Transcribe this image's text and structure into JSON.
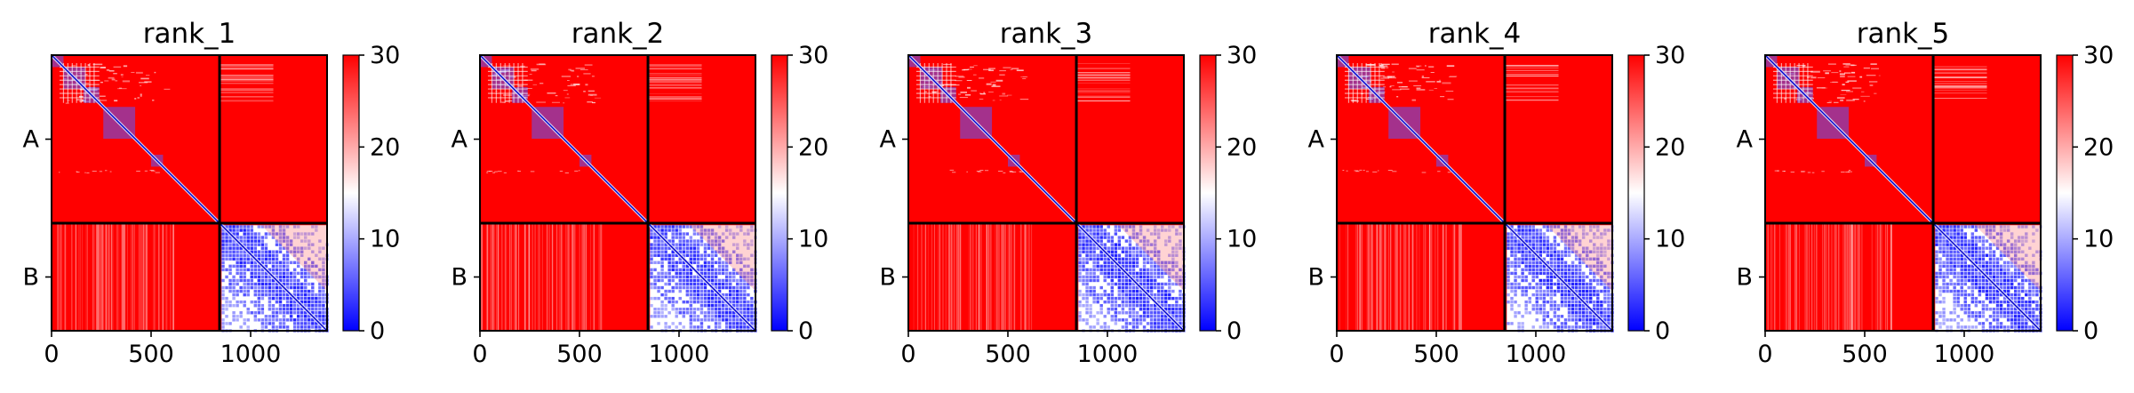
{
  "figure": {
    "panel_titles": [
      "rank_1",
      "rank_2",
      "rank_3",
      "rank_4",
      "rank_5"
    ]
  },
  "chart_data": [
    {
      "type": "heatmap",
      "title": "rank_1",
      "xlabel": "",
      "ylabel": "",
      "x_ticks": [
        0,
        500,
        1000
      ],
      "xlim": [
        0,
        1384
      ],
      "ylim": [
        1384,
        0
      ],
      "y_chain_labels": [
        "A",
        "B"
      ],
      "chains": [
        {
          "name": "A",
          "start": 0,
          "end": 844
        },
        {
          "name": "B",
          "start": 844,
          "end": 1384
        }
      ],
      "chain_boundary": 844,
      "value_range": [
        0,
        30
      ],
      "colorbar_ticks": [
        0,
        10,
        20,
        30
      ],
      "colormap": [
        "#0000ff",
        "#ffffff",
        "#ff0000"
      ],
      "grid": false
    },
    {
      "type": "heatmap",
      "title": "rank_2",
      "xlabel": "",
      "ylabel": "",
      "x_ticks": [
        0,
        500,
        1000
      ],
      "xlim": [
        0,
        1384
      ],
      "ylim": [
        1384,
        0
      ],
      "y_chain_labels": [
        "A",
        "B"
      ],
      "chains": [
        {
          "name": "A",
          "start": 0,
          "end": 844
        },
        {
          "name": "B",
          "start": 844,
          "end": 1384
        }
      ],
      "chain_boundary": 844,
      "value_range": [
        0,
        30
      ],
      "colorbar_ticks": [
        0,
        10,
        20,
        30
      ],
      "colormap": [
        "#0000ff",
        "#ffffff",
        "#ff0000"
      ],
      "grid": false
    },
    {
      "type": "heatmap",
      "title": "rank_3",
      "xlabel": "",
      "ylabel": "",
      "x_ticks": [
        0,
        500,
        1000
      ],
      "xlim": [
        0,
        1384
      ],
      "ylim": [
        1384,
        0
      ],
      "y_chain_labels": [
        "A",
        "B"
      ],
      "chains": [
        {
          "name": "A",
          "start": 0,
          "end": 844
        },
        {
          "name": "B",
          "start": 844,
          "end": 1384
        }
      ],
      "chain_boundary": 844,
      "value_range": [
        0,
        30
      ],
      "colorbar_ticks": [
        0,
        10,
        20,
        30
      ],
      "colormap": [
        "#0000ff",
        "#ffffff",
        "#ff0000"
      ],
      "grid": false
    },
    {
      "type": "heatmap",
      "title": "rank_4",
      "xlabel": "",
      "ylabel": "",
      "x_ticks": [
        0,
        500,
        1000
      ],
      "xlim": [
        0,
        1384
      ],
      "ylim": [
        1384,
        0
      ],
      "y_chain_labels": [
        "A",
        "B"
      ],
      "chains": [
        {
          "name": "A",
          "start": 0,
          "end": 844
        },
        {
          "name": "B",
          "start": 844,
          "end": 1384
        }
      ],
      "chain_boundary": 844,
      "value_range": [
        0,
        30
      ],
      "colorbar_ticks": [
        0,
        10,
        20,
        30
      ],
      "colormap": [
        "#0000ff",
        "#ffffff",
        "#ff0000"
      ],
      "grid": false
    },
    {
      "type": "heatmap",
      "title": "rank_5",
      "xlabel": "",
      "ylabel": "",
      "x_ticks": [
        0,
        500,
        1000
      ],
      "xlim": [
        0,
        1384
      ],
      "ylim": [
        1384,
        0
      ],
      "y_chain_labels": [
        "A",
        "B"
      ],
      "chains": [
        {
          "name": "A",
          "start": 0,
          "end": 844
        },
        {
          "name": "B",
          "start": 844,
          "end": 1384
        }
      ],
      "chain_boundary": 844,
      "value_range": [
        0,
        30
      ],
      "colorbar_ticks": [
        0,
        10,
        20,
        30
      ],
      "colormap": [
        "#0000ff",
        "#ffffff",
        "#ff0000"
      ],
      "grid": false
    }
  ]
}
